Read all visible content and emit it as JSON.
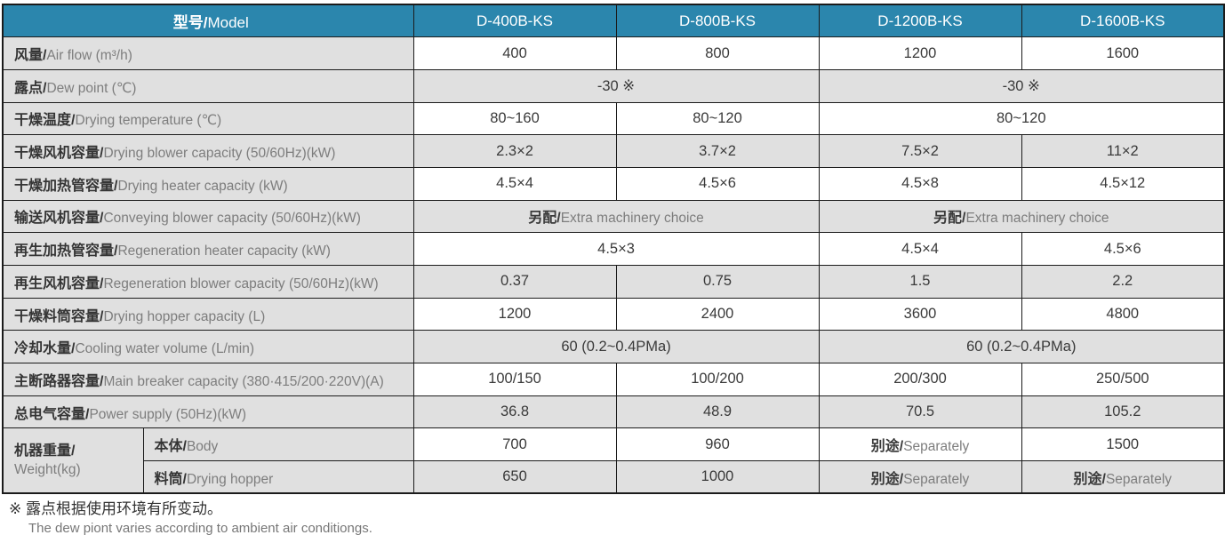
{
  "header": {
    "label_zh": "型号/",
    "label_en": "Model",
    "models": [
      "D-400B-KS",
      "D-800B-KS",
      "D-1200B-KS",
      "D-1600B-KS"
    ]
  },
  "rows": [
    {
      "zh": "风量/",
      "en": "Air flow (m³/h)",
      "cells": [
        {
          "t": "400"
        },
        {
          "t": "800"
        },
        {
          "t": "1200"
        },
        {
          "t": "1600"
        }
      ]
    },
    {
      "zh": "露点/",
      "en": "Dew point (℃)",
      "cells": [
        {
          "t": "-30 ※",
          "span": 2
        },
        {
          "t": "-30 ※",
          "span": 2
        }
      ]
    },
    {
      "zh": "干燥温度/",
      "en": "Drying temperature (℃)",
      "cells": [
        {
          "t": "80~160"
        },
        {
          "t": "80~120"
        },
        {
          "t": "80~120",
          "span": 2
        }
      ]
    },
    {
      "zh": "干燥风机容量/",
      "en": "Drying blower capacity (50/60Hz)(kW)",
      "cells": [
        {
          "t": "2.3×2"
        },
        {
          "t": "3.7×2"
        },
        {
          "t": "7.5×2"
        },
        {
          "t": "11×2"
        }
      ]
    },
    {
      "zh": "干燥加热管容量/",
      "en": "Drying heater capacity (kW)",
      "cells": [
        {
          "t": "4.5×4"
        },
        {
          "t": "4.5×6"
        },
        {
          "t": "4.5×8"
        },
        {
          "t": "4.5×12"
        }
      ]
    },
    {
      "zh": "输送风机容量/",
      "en": "Conveying blower capacity (50/60Hz)(kW)",
      "cells": [
        {
          "zh": "另配/",
          "en": "Extra machinery choice",
          "span": 2
        },
        {
          "zh": "另配/",
          "en": "Extra machinery choice",
          "span": 2
        }
      ]
    },
    {
      "zh": "再生加热管容量/",
      "en": "Regeneration heater capacity (kW)",
      "cells": [
        {
          "t": "4.5×3",
          "span": 2
        },
        {
          "t": "4.5×4"
        },
        {
          "t": "4.5×6"
        }
      ]
    },
    {
      "zh": "再生风机容量/",
      "en": "Regeneration blower capacity (50/60Hz)(kW)",
      "cells": [
        {
          "t": "0.37"
        },
        {
          "t": "0.75"
        },
        {
          "t": "1.5"
        },
        {
          "t": "2.2"
        }
      ]
    },
    {
      "zh": "干燥料筒容量/",
      "en": "Drying hopper capacity (L)",
      "cells": [
        {
          "t": "1200"
        },
        {
          "t": "2400"
        },
        {
          "t": "3600"
        },
        {
          "t": "4800"
        }
      ]
    },
    {
      "zh": "冷却水量/",
      "en": "Cooling water volume (L/min)",
      "cells": [
        {
          "t": "60 (0.2~0.4PMa)",
          "span": 2
        },
        {
          "t": "60 (0.2~0.4PMa)",
          "span": 2
        }
      ]
    },
    {
      "zh": "主断路器容量/",
      "en": "Main breaker capacity (380·415/200·220V)(A)",
      "cells": [
        {
          "t": "100/150"
        },
        {
          "t": "100/200"
        },
        {
          "t": "200/300"
        },
        {
          "t": "250/500"
        }
      ]
    },
    {
      "zh": "总电气容量/",
      "en": "Power supply (50Hz)(kW)",
      "cells": [
        {
          "t": "36.8"
        },
        {
          "t": "48.9"
        },
        {
          "t": "70.5"
        },
        {
          "t": "105.2"
        }
      ]
    }
  ],
  "weight": {
    "zh": "机器重量/",
    "en": "Weight(kg)",
    "subrows": [
      {
        "zh": "本体/",
        "en": "Body",
        "cells": [
          {
            "t": "700"
          },
          {
            "t": "960"
          },
          {
            "zh": "别途/",
            "en": "Separately"
          },
          {
            "t": "1500"
          }
        ]
      },
      {
        "zh": "料筒/",
        "en": "Drying hopper",
        "cells": [
          {
            "t": "650"
          },
          {
            "t": "1000"
          },
          {
            "zh": "别途/",
            "en": "Separately"
          },
          {
            "zh": "别途/",
            "en": "Separately"
          }
        ]
      }
    ]
  },
  "footnote": {
    "zh": "※ 露点根据使用环境有所变动。",
    "en": "The dew piont varies according to ambient air conditiongs."
  },
  "colors": {
    "header_bg": "#2B86AD",
    "row_gray": "#E0E0E0",
    "row_white": "#FFFFFF",
    "border": "#1B1B1B",
    "zh_text": "#353535",
    "en_text": "#7D7D7D"
  }
}
